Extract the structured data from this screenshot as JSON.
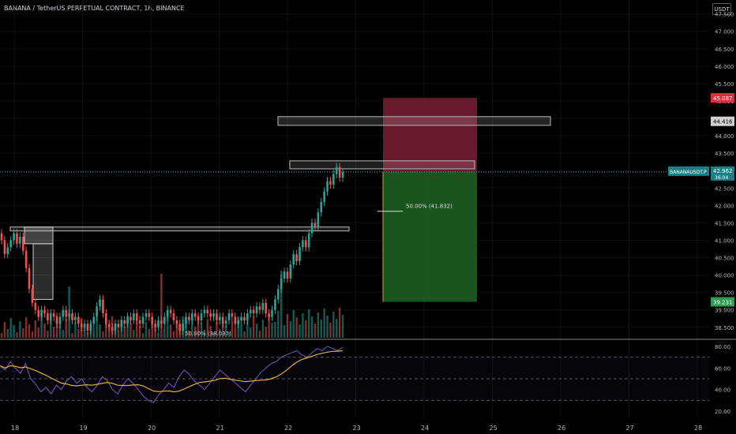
{
  "header": {
    "title": "BANANA / TetherUS PERPETUAL CONTRACT, 1h, BINANCE",
    "currency_button": "USDT"
  },
  "chart_data": {
    "type": "candlestick",
    "price_axis_ticks": [
      "47.500",
      "47.000",
      "46.500",
      "46.000",
      "45.500",
      "45.000",
      "44.500",
      "44.000",
      "43.500",
      "43.000",
      "42.500",
      "42.000",
      "41.500",
      "41.000",
      "40.500",
      "40.000",
      "39.500",
      "39.000",
      "38.500"
    ],
    "price_axis_tick_values": [
      47.5,
      47.0,
      46.5,
      46.0,
      45.5,
      45.0,
      44.5,
      44.0,
      43.5,
      43.0,
      42.5,
      42.0,
      41.5,
      41.0,
      40.5,
      40.0,
      39.5,
      39.0,
      38.5
    ],
    "price_range": [
      38.2,
      47.9
    ],
    "time_axis_ticks": [
      "18",
      "19",
      "20",
      "21",
      "22",
      "23",
      "24",
      "25",
      "26",
      "27",
      "28"
    ],
    "labels": {
      "stop_price": "45.087",
      "level_price": "44.416",
      "last_symbol": "BANANAUSDT.P",
      "last_price": "42.962",
      "countdown": "36:04",
      "target_price": "39.231",
      "fib_mid": "50.00% (41.832)",
      "fib_low": "50.00% (38.037)"
    },
    "levels": {
      "stop": 45.087,
      "resistance_zone": [
        44.3,
        44.55
      ],
      "entry": 42.962,
      "upper_box": [
        43.05,
        43.28
      ],
      "mid_line": 41.832,
      "lower_box": [
        41.3,
        41.38
      ],
      "target": 39.231
    },
    "colors": {
      "up": "#26a69a",
      "down": "#ef5350",
      "stop_zone": "#7a1f35",
      "target_zone": "#1d5e23",
      "current_price_line": "#4aa8d8",
      "rsi_line": "#7e57c2",
      "rsi_ma_line": "#e0b040",
      "volume_ma_line": "#2962ff"
    },
    "rsi": {
      "axis_ticks": [
        "80.00",
        "60.00",
        "40.00",
        "20.00"
      ],
      "axis_tick_values": [
        80,
        60,
        40,
        20
      ],
      "bands": [
        70,
        50,
        30
      ]
    }
  }
}
